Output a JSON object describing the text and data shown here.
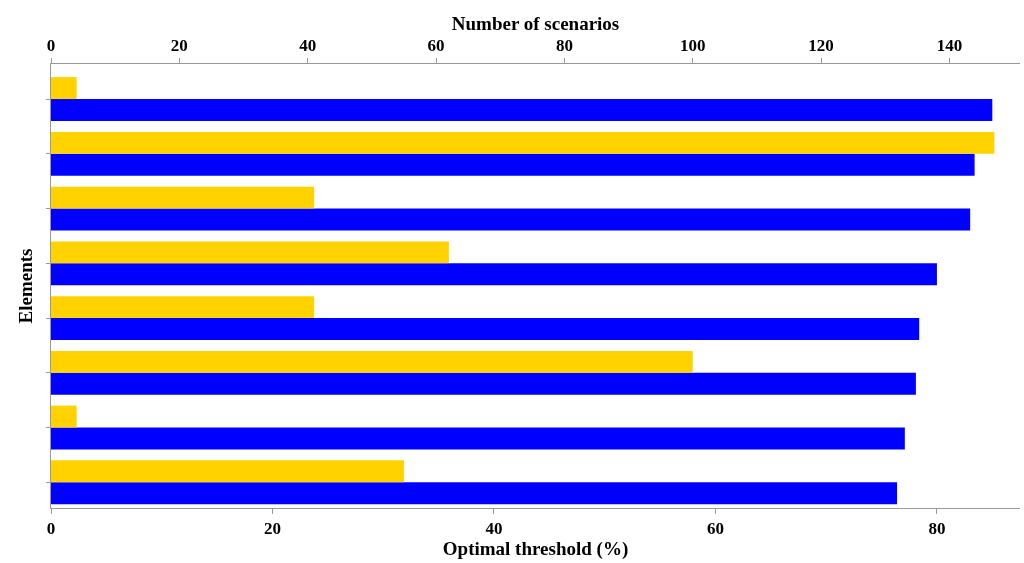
{
  "chart_data": {
    "type": "bar",
    "orientation": "horizontal",
    "xlabel": "Optimal threshold (%)",
    "x2label": "Number of scenarios",
    "ylabel": "Elements",
    "categories": [
      null,
      null,
      null,
      null,
      null,
      null,
      null,
      null
    ],
    "series": [
      {
        "color": "#ffd200",
        "axis": "x2",
        "values": [
          4,
          147,
          41,
          62,
          41,
          100,
          4,
          55
        ]
      },
      {
        "color": "#0000ff",
        "values": [
          85.0,
          83.4,
          83.0,
          80.0,
          78.4,
          78.1,
          77.1,
          76.4
        ]
      }
    ],
    "xlim": [
      0,
      87.5
    ],
    "xticks": [
      0,
      20,
      40,
      60,
      80
    ],
    "x2lim": [
      0,
      151
    ],
    "x2ticks": [
      0,
      20,
      40,
      60,
      80,
      100,
      120,
      140
    ],
    "tick_labels": "x"
  }
}
